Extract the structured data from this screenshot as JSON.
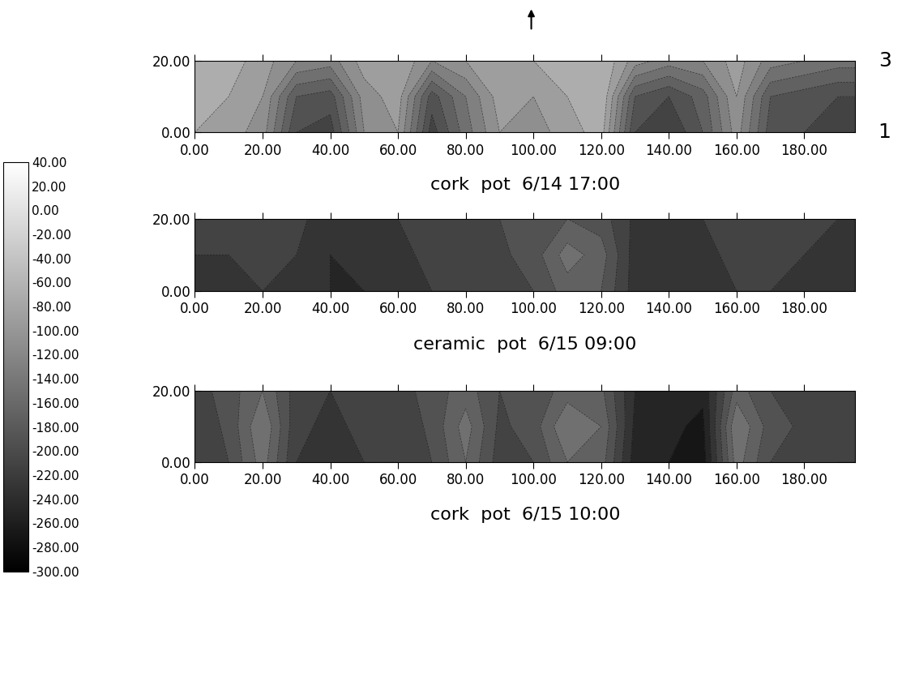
{
  "chart_data": [
    {
      "type": "contour",
      "title": "cork  pot  6/14 17:00",
      "x": [
        0,
        10,
        20,
        30,
        40,
        50,
        60,
        70,
        80,
        90,
        100,
        110,
        120,
        130,
        140,
        150,
        160,
        170,
        180,
        190,
        195
      ],
      "y": [
        0,
        10,
        20
      ],
      "cells": [
        [
          -80,
          -90,
          -110,
          -200,
          -210,
          -120,
          -100,
          -210,
          -150,
          -100,
          -110,
          -90,
          -70,
          -200,
          -220,
          -180,
          -110,
          -190,
          -200,
          -210,
          -210
        ],
        [
          -70,
          -80,
          -100,
          -180,
          -190,
          -110,
          -90,
          -190,
          -140,
          -90,
          -100,
          -80,
          -60,
          -180,
          -200,
          -170,
          -100,
          -180,
          -190,
          -200,
          -200
        ],
        [
          -60,
          -70,
          -90,
          -120,
          -130,
          -90,
          -80,
          -120,
          -100,
          -80,
          -80,
          -70,
          -60,
          -110,
          -130,
          -120,
          -90,
          -130,
          -140,
          -150,
          -150
        ]
      ],
      "xlim": [
        0,
        195
      ],
      "ylim": [
        0,
        20
      ],
      "xticks": [
        {
          "value": 0,
          "label": "0.00"
        },
        {
          "value": 20,
          "label": "20.00"
        },
        {
          "value": 40,
          "label": "40.00"
        },
        {
          "value": 60,
          "label": "60.00"
        },
        {
          "value": 80,
          "label": "80.00"
        },
        {
          "value": 100,
          "label": "100.00"
        },
        {
          "value": 120,
          "label": "120.00"
        },
        {
          "value": 140,
          "label": "140.00"
        },
        {
          "value": 160,
          "label": "160.00"
        },
        {
          "value": 180,
          "label": "180.00"
        }
      ],
      "yticks": [
        {
          "value": 0,
          "label": "0.00"
        },
        {
          "value": 20,
          "label": "20.00"
        }
      ],
      "right_labels": [
        {
          "value": 20,
          "label": "3"
        },
        {
          "value": 0,
          "label": "1"
        }
      ]
    },
    {
      "type": "contour",
      "title": "ceramic  pot  6/15 09:00",
      "x": [
        0,
        10,
        20,
        30,
        40,
        50,
        60,
        70,
        80,
        90,
        100,
        110,
        120,
        130,
        140,
        150,
        160,
        170,
        180,
        190,
        195
      ],
      "y": [
        0,
        10,
        20
      ],
      "cells": [
        [
          -230,
          -230,
          -220,
          -230,
          -240,
          -240,
          -230,
          -220,
          -220,
          -210,
          -200,
          -170,
          -180,
          -230,
          -240,
          -230,
          -220,
          -220,
          -230,
          -230,
          -230
        ],
        [
          -220,
          -220,
          -215,
          -220,
          -240,
          -235,
          -225,
          -215,
          -215,
          -205,
          -190,
          -150,
          -170,
          -230,
          -235,
          -225,
          -215,
          -215,
          -220,
          -225,
          -225
        ],
        [
          -215,
          -215,
          -210,
          -215,
          -230,
          -230,
          -220,
          -210,
          -210,
          -200,
          -195,
          -180,
          -190,
          -225,
          -230,
          -220,
          -210,
          -210,
          -215,
          -220,
          -220
        ]
      ],
      "xlim": [
        0,
        195
      ],
      "ylim": [
        0,
        20
      ],
      "xticks": [
        {
          "value": 0,
          "label": "0.00"
        },
        {
          "value": 20,
          "label": "20.00"
        },
        {
          "value": 40,
          "label": "40.00"
        },
        {
          "value": 60,
          "label": "60.00"
        },
        {
          "value": 80,
          "label": "80.00"
        },
        {
          "value": 100,
          "label": "100.00"
        },
        {
          "value": 120,
          "label": "120.00"
        },
        {
          "value": 140,
          "label": "140.00"
        },
        {
          "value": 160,
          "label": "160.00"
        },
        {
          "value": 180,
          "label": "180.00"
        }
      ],
      "yticks": [
        {
          "value": 0,
          "label": "0.00"
        },
        {
          "value": 20,
          "label": "20.00"
        }
      ]
    },
    {
      "type": "contour",
      "title": "cork  pot  6/15 10:00",
      "x": [
        0,
        10,
        20,
        30,
        40,
        50,
        60,
        70,
        80,
        90,
        100,
        110,
        120,
        130,
        140,
        150,
        160,
        170,
        180,
        190,
        195
      ],
      "y": [
        0,
        10,
        20
      ],
      "cells": [
        [
          -220,
          -200,
          -150,
          -220,
          -230,
          -220,
          -220,
          -200,
          -160,
          -210,
          -200,
          -160,
          -170,
          -250,
          -260,
          -270,
          -150,
          -200,
          -210,
          -220,
          -220
        ],
        [
          -215,
          -195,
          -140,
          -215,
          -225,
          -215,
          -215,
          -195,
          -150,
          -205,
          -190,
          -140,
          -160,
          -245,
          -255,
          -265,
          -140,
          -190,
          -205,
          -215,
          -215
        ],
        [
          -210,
          -190,
          -160,
          -210,
          -220,
          -210,
          -210,
          -190,
          -170,
          -200,
          -195,
          -170,
          -175,
          -240,
          -250,
          -255,
          -170,
          -200,
          -205,
          -210,
          -210
        ]
      ],
      "xlim": [
        0,
        195
      ],
      "ylim": [
        0,
        20
      ],
      "xticks": [
        {
          "value": 0,
          "label": "0.00"
        },
        {
          "value": 20,
          "label": "20.00"
        },
        {
          "value": 40,
          "label": "40.00"
        },
        {
          "value": 60,
          "label": "60.00"
        },
        {
          "value": 80,
          "label": "80.00"
        },
        {
          "value": 100,
          "label": "100.00"
        },
        {
          "value": 120,
          "label": "120.00"
        },
        {
          "value": 140,
          "label": "140.00"
        },
        {
          "value": 160,
          "label": "160.00"
        },
        {
          "value": 180,
          "label": "180.00"
        }
      ],
      "yticks": [
        {
          "value": 0,
          "label": "0.00"
        },
        {
          "value": 20,
          "label": "20.00"
        }
      ]
    }
  ],
  "colorbar": {
    "range": [
      -300,
      40
    ],
    "ticks": [
      {
        "value": 40,
        "label": "40.00"
      },
      {
        "value": 20,
        "label": "20.00"
      },
      {
        "value": 0,
        "label": "0.00"
      },
      {
        "value": -20,
        "label": "-20.00"
      },
      {
        "value": -40,
        "label": "-40.00"
      },
      {
        "value": -60,
        "label": "-60.00"
      },
      {
        "value": -80,
        "label": "-80.00"
      },
      {
        "value": -100,
        "label": "-100.00"
      },
      {
        "value": -120,
        "label": "-120.00"
      },
      {
        "value": -140,
        "label": "-140.00"
      },
      {
        "value": -160,
        "label": "-160.00"
      },
      {
        "value": -180,
        "label": "-180.00"
      },
      {
        "value": -200,
        "label": "-200.00"
      },
      {
        "value": -220,
        "label": "-220.00"
      },
      {
        "value": -240,
        "label": "-240.00"
      },
      {
        "value": -260,
        "label": "-260.00"
      },
      {
        "value": -280,
        "label": "-280.00"
      },
      {
        "value": -300,
        "label": "-300.00"
      }
    ]
  }
}
